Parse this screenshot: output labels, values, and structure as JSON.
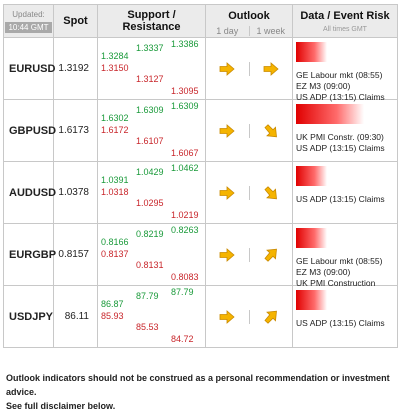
{
  "header": {
    "updated_label": "Updated:",
    "updated_time": "10:44 GMT",
    "spot": "Spot",
    "sr": "Support / Resistance",
    "outlook": "Outlook",
    "day": "1 day",
    "week": "1 week",
    "data": "Data / Event Risk",
    "data_sub": "All times GMT"
  },
  "rows": [
    {
      "pair": "EURUSD",
      "spot": "1.3192",
      "s1": "1.3284",
      "s2": "1.3150",
      "s3": "1.3337",
      "s4": "1.3127",
      "s5": "1.3386",
      "s6": "1.3095",
      "day": "arrow-right-icon",
      "week": "arrow-right-icon",
      "risk": 0.35,
      "events": [
        "GE Labour mkt (08:55)",
        "EZ M3 (09:00)",
        "US ADP (13:15) Claims"
      ]
    },
    {
      "pair": "GBPUSD",
      "spot": "1.6173",
      "s1": "1.6302",
      "s2": "1.6172",
      "s3": "1.6309",
      "s4": "1.6107",
      "s5": "1.6309",
      "s6": "1.6067",
      "day": "arrow-right-icon",
      "week": "arrow-down-right-icon",
      "risk": 0.75,
      "events": [
        "UK PMI Constr. (09:30)",
        "US ADP (13:15) Claims"
      ]
    },
    {
      "pair": "AUDUSD",
      "spot": "1.0378",
      "s1": "1.0391",
      "s2": "1.0318",
      "s3": "1.0429",
      "s4": "1.0295",
      "s5": "1.0462",
      "s6": "1.0219",
      "day": "arrow-right-icon",
      "week": "arrow-down-right-icon",
      "risk": 0.35,
      "events": [
        "US ADP (13:15) Claims"
      ]
    },
    {
      "pair": "EURGBP",
      "spot": "0.8157",
      "s1": "0.8166",
      "s2": "0.8137",
      "s3": "0.8219",
      "s4": "0.8131",
      "s5": "0.8263",
      "s6": "0.8083",
      "day": "arrow-right-icon",
      "week": "arrow-up-right-icon",
      "risk": 0.35,
      "events": [
        "GE Labour mkt (08:55)",
        "EZ M3 (09:00)",
        "UK PMI Construction"
      ]
    },
    {
      "pair": "USDJPY",
      "spot": "86.11",
      "s1": "86.87",
      "s2": "85.93",
      "s3": "87.79",
      "s4": "85.53",
      "s5": "87.79",
      "s6": "84.72",
      "day": "arrow-right-icon",
      "week": "arrow-up-right-icon",
      "risk": 0.35,
      "events": [
        "US ADP (13:15) Claims"
      ]
    }
  ],
  "footer": {
    "line1": "Outlook indicators should not be construed as a personal recommendation or investment advice.",
    "line2": "See full disclaimer below."
  },
  "colors": {
    "support": "#1a9a3a",
    "resistance": "#c8262b",
    "arrow": "#f5b400"
  }
}
